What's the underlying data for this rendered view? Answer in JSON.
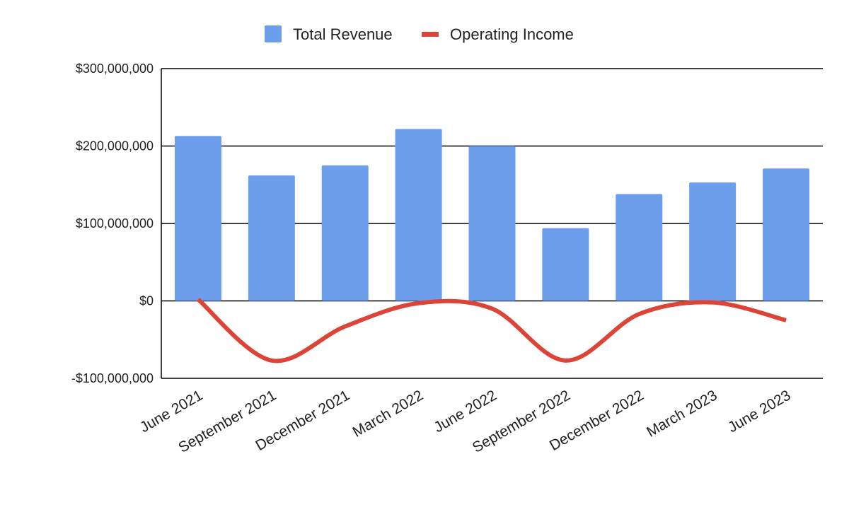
{
  "chart_data": {
    "type": "bar",
    "categories": [
      "June 2021",
      "September 2021",
      "December 2021",
      "March 2022",
      "June 2022",
      "September 2022",
      "December 2022",
      "March 2023",
      "June 2023"
    ],
    "series": [
      {
        "name": "Total Revenue",
        "type": "bar",
        "color": "#6d9eeb",
        "values": [
          213000000,
          162000000,
          175000000,
          222000000,
          200000000,
          94000000,
          138000000,
          153000000,
          171000000
        ]
      },
      {
        "name": "Operating Income",
        "type": "line",
        "smooth": true,
        "color": "#db4437",
        "values": [
          2000000,
          -77000000,
          -33000000,
          -3000000,
          -10000000,
          -77000000,
          -17000000,
          -2000000,
          -25000000
        ]
      }
    ],
    "ylim": [
      -100000000,
      300000000
    ],
    "yticks": [
      -100000000,
      0,
      100000000,
      200000000,
      300000000
    ],
    "ytick_labels": [
      "-$100,000,000",
      "$0",
      "$100,000,000",
      "$200,000,000",
      "$300,000,000"
    ],
    "grid": true,
    "legend_position": "top-center",
    "title": "",
    "xlabel": "",
    "ylabel": ""
  }
}
